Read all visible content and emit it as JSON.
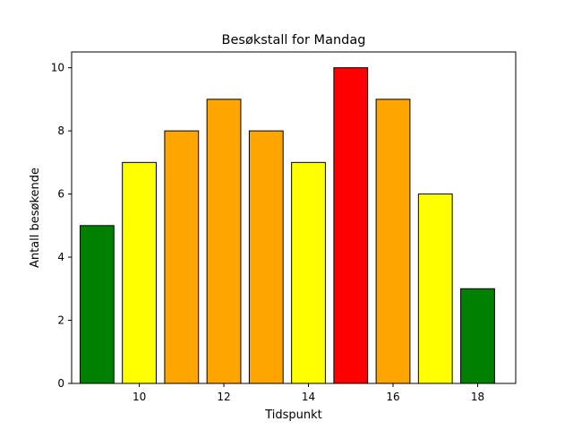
{
  "chart_data": {
    "type": "bar",
    "title": "Besøkstall for Mandag",
    "xlabel": "Tidspunkt",
    "ylabel": "Antall besøkende",
    "x": [
      9,
      10,
      11,
      12,
      13,
      14,
      15,
      16,
      17,
      18
    ],
    "values": [
      5,
      7,
      8,
      9,
      8,
      7,
      10,
      9,
      6,
      3
    ],
    "bar_colors": [
      "#008000",
      "#ffff00",
      "#ffa500",
      "#ffa500",
      "#ffa500",
      "#ffff00",
      "#ff0000",
      "#ffa500",
      "#ffff00",
      "#008000"
    ],
    "bar_edge_color": "#000000",
    "bar_width": 0.8,
    "xlim": [
      8.4,
      18.9
    ],
    "ylim": [
      0,
      10.5
    ],
    "xticks": [
      10,
      12,
      14,
      16,
      18
    ],
    "yticks": [
      0,
      2,
      4,
      6,
      8,
      10
    ],
    "grid": false,
    "legend": "none"
  }
}
